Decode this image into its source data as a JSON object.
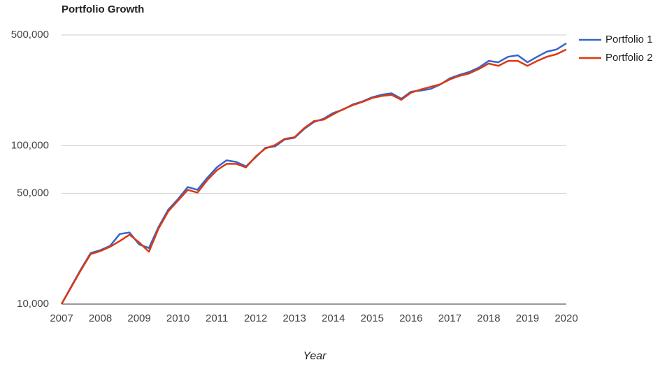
{
  "chart_data": {
    "type": "line",
    "title": "Portfolio Growth",
    "xlabel": "Year",
    "x": [
      2007,
      2007.25,
      2007.5,
      2007.75,
      2008,
      2008.25,
      2008.5,
      2008.75,
      2009,
      2009.25,
      2009.5,
      2009.75,
      2010,
      2010.25,
      2010.5,
      2010.75,
      2011,
      2011.25,
      2011.5,
      2011.75,
      2012,
      2012.25,
      2012.5,
      2012.75,
      2013,
      2013.25,
      2013.5,
      2013.75,
      2014,
      2014.25,
      2014.5,
      2014.75,
      2015,
      2015.25,
      2015.5,
      2015.75,
      2016,
      2016.25,
      2016.5,
      2016.75,
      2017,
      2017.25,
      2017.5,
      2017.75,
      2018,
      2018.25,
      2018.5,
      2018.75,
      2019,
      2019.25,
      2019.5,
      2019.75,
      2020
    ],
    "series": [
      {
        "name": "Portfolio 1",
        "color": "#3366cc",
        "values": [
          10000,
          12900,
          16600,
          21000,
          21900,
          23300,
          27700,
          28300,
          23800,
          22600,
          30700,
          39500,
          46000,
          54800,
          52600,
          62500,
          73000,
          80800,
          79000,
          74000,
          84600,
          97000,
          99000,
          109600,
          112000,
          127600,
          141000,
          148000,
          161000,
          169000,
          182000,
          190000,
          202000,
          210000,
          214000,
          198000,
          219000,
          223000,
          228000,
          243000,
          266000,
          280000,
          292000,
          311000,
          343000,
          336000,
          364000,
          372000,
          336000,
          364000,
          392000,
          405000,
          443000
        ]
      },
      {
        "name": "Portfolio 2",
        "color": "#dc3912",
        "values": [
          10000,
          12800,
          16400,
          20700,
          21600,
          23000,
          25000,
          27400,
          24500,
          21400,
          30000,
          38500,
          45000,
          52600,
          50500,
          60500,
          70000,
          76800,
          76800,
          73000,
          85500,
          96000,
          101000,
          110500,
          113000,
          129000,
          143000,
          146000,
          158000,
          170000,
          180000,
          189000,
          200000,
          206000,
          209000,
          195000,
          216000,
          226000,
          235000,
          244000,
          262000,
          276000,
          286000,
          305000,
          330000,
          319000,
          343000,
          343000,
          319000,
          343000,
          364000,
          378000,
          405000
        ]
      }
    ],
    "xlim": [
      2007,
      2020
    ],
    "xticks": [
      2007,
      2008,
      2009,
      2010,
      2011,
      2012,
      2013,
      2014,
      2015,
      2016,
      2017,
      2018,
      2019,
      2020
    ],
    "ylim": [
      10000,
      500000
    ],
    "log_y": true,
    "yticks": [
      {
        "value": 10000,
        "label": "10,000"
      },
      {
        "value": 50000,
        "label": "50,000"
      },
      {
        "value": 100000,
        "label": "100,000"
      },
      {
        "value": 500000,
        "label": "500,000"
      }
    ],
    "grid": true,
    "legend": "right"
  }
}
